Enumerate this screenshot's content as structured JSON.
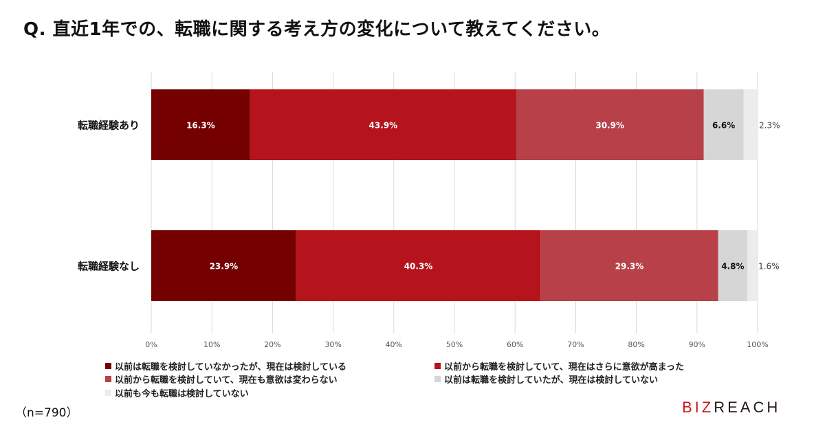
{
  "title": "Q. 直近1年での、転職に関する考え方の変化について教えてください。",
  "note": "（n=790）",
  "logo": {
    "text": "BIZREACH",
    "colors": [
      "#c8161d",
      "#231815"
    ]
  },
  "chart_data": {
    "type": "bar",
    "orientation": "horizontal",
    "stacked": true,
    "categories": [
      "転職経験あり",
      "転職経験なし"
    ],
    "xlim": [
      0,
      100
    ],
    "xticks": [
      "0%",
      "10%",
      "20%",
      "30%",
      "40%",
      "50%",
      "60%",
      "70%",
      "80%",
      "90%",
      "100%"
    ],
    "grid": true,
    "legend_placement": "bottom",
    "series": [
      {
        "name": "以前は転職を検討していなかったが、現在は検討している",
        "values": [
          16.3,
          23.9
        ],
        "labels": [
          "16.3%",
          "23.9%"
        ],
        "color": "#740000"
      },
      {
        "name": "以前から転職を検討していて、現在はさらに意欲が高まった",
        "values": [
          43.9,
          40.3
        ],
        "labels": [
          "43.9%",
          "40.3%"
        ],
        "color": "#b5141c"
      },
      {
        "name": "以前から転職を検討していて、現在も意欲は変わらない",
        "values": [
          30.9,
          29.3
        ],
        "labels": [
          "30.9%",
          "29.3%"
        ],
        "color": "#b84048"
      },
      {
        "name": "以前は転職を検討していたが、現在は検討していない",
        "values": [
          6.6,
          4.8
        ],
        "labels": [
          "6.6%",
          "4.8%"
        ],
        "color": "#d6d6d6"
      },
      {
        "name": "以前も今も転職は検討していない",
        "values": [
          2.3,
          1.6
        ],
        "labels": [
          "2.3%",
          "1.6%"
        ],
        "color": "#ececec"
      }
    ]
  }
}
